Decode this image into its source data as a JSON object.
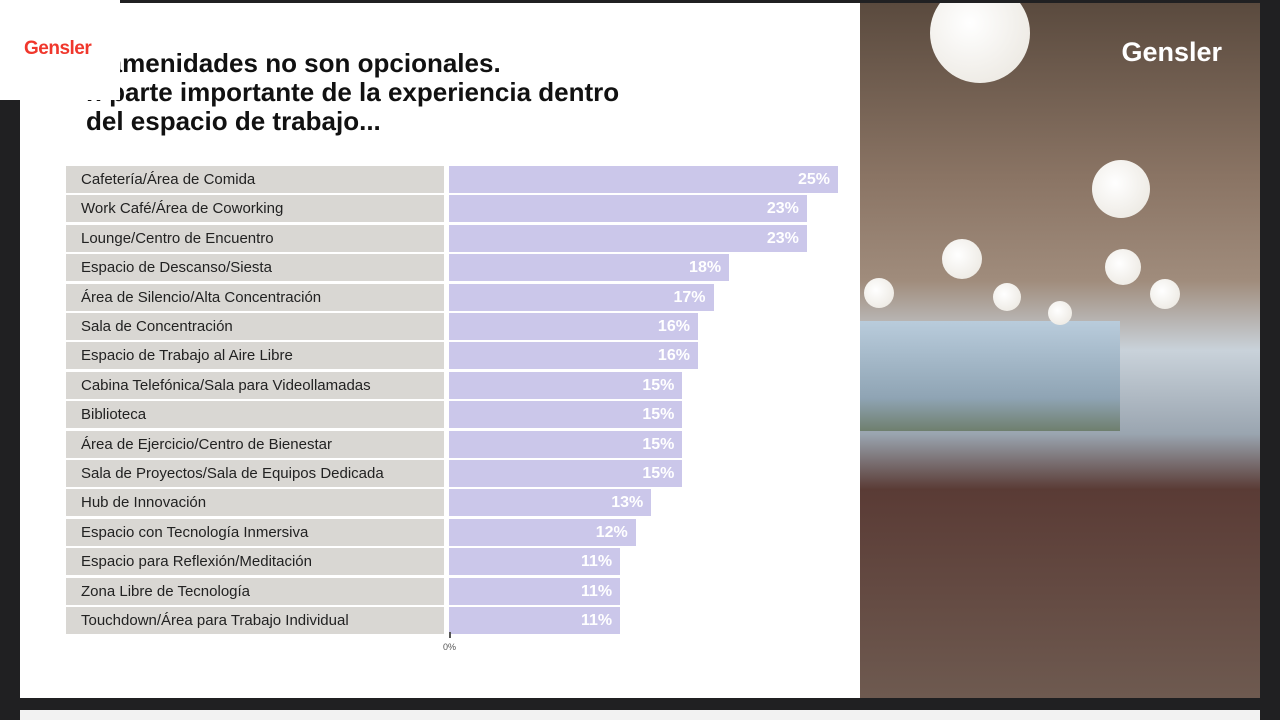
{
  "slide": {
    "logo": "Gensler",
    "title_lines": [
      "s amenidades no son opcionales.",
      "n parte importante de la experiencia dentro",
      "del espacio de trabajo..."
    ]
  },
  "photo": {
    "logo": "Gensler"
  },
  "chart_data": {
    "type": "bar",
    "orientation": "horizontal",
    "categories": [
      "Cafetería/Área de Comida",
      "Work Café/Área de Coworking",
      "Lounge/Centro de Encuentro",
      "Espacio de Descanso/Siesta",
      "Área de Silencio/Alta Concentración",
      "Sala de Concentración",
      "Espacio de Trabajo al Aire Libre",
      "Cabina Telefónica/Sala para Videollamadas",
      "Biblioteca",
      "Área de Ejercicio/Centro de Bienestar",
      "Sala de Proyectos/Sala de Equipos Dedicada",
      "Hub de Innovación",
      "Espacio con Tecnología Inmersiva",
      "Espacio para Reflexión/Meditación",
      "Zona Libre de Tecnología",
      "Touchdown/Área para Trabajo Individual"
    ],
    "values": [
      25,
      23,
      23,
      18,
      17,
      16,
      16,
      15,
      15,
      15,
      15,
      13,
      12,
      11,
      11,
      11
    ],
    "labels": [
      "25%",
      "23%",
      "23%",
      "18%",
      "17%",
      "16%",
      "16%",
      "15%",
      "15%",
      "15%",
      "15%",
      "13%",
      "12%",
      "11%",
      "11%",
      "11%"
    ],
    "x_tick_label": "0%",
    "bar_color": "#cbc7ea",
    "label_bg": "#d9d7d3"
  }
}
